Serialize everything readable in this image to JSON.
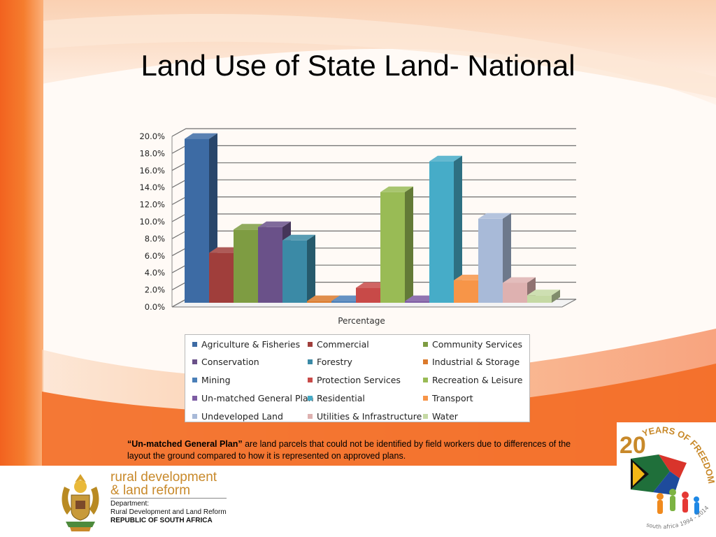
{
  "slide": {
    "title": "Land Use of State Land- National"
  },
  "chart_data": {
    "type": "bar",
    "xlabel": "Percentage",
    "ylabel": "",
    "ylim": [
      0,
      20
    ],
    "ytick_labels": [
      "0.0%",
      "2.0%",
      "4.0%",
      "6.0%",
      "8.0%",
      "10.0%",
      "12.0%",
      "14.0%",
      "16.0%",
      "18.0%",
      "20.0%"
    ],
    "grid": true,
    "legend_position": "bottom",
    "series": [
      {
        "name": "Agriculture & Fisheries",
        "value": 19.7,
        "color": "#3d6ba4"
      },
      {
        "name": "Commercial",
        "value": 6.0,
        "color": "#a03e3b"
      },
      {
        "name": "Community Services",
        "value": 8.8,
        "color": "#7e9c42"
      },
      {
        "name": "Conservation",
        "value": 9.1,
        "color": "#6a5189"
      },
      {
        "name": "Forestry",
        "value": 7.5,
        "color": "#3b8aa6"
      },
      {
        "name": "Industrial & Storage",
        "value": 0.2,
        "color": "#db7a2c"
      },
      {
        "name": "Mining",
        "value": 0.2,
        "color": "#4a7fb8"
      },
      {
        "name": "Protection Services",
        "value": 1.8,
        "color": "#c84a48"
      },
      {
        "name": "Recreation & Leisure",
        "value": 13.3,
        "color": "#99bb55"
      },
      {
        "name": "Un-matched General Plan",
        "value": 0.2,
        "color": "#7d5ca3"
      },
      {
        "name": "Residential",
        "value": 17.0,
        "color": "#46acc8"
      },
      {
        "name": "Transport",
        "value": 2.7,
        "color": "#f79548"
      },
      {
        "name": "Undeveloped Land",
        "value": 10.1,
        "color": "#a8bad8"
      },
      {
        "name": "Utilities & Infrastructure",
        "value": 2.4,
        "color": "#deb1b0"
      },
      {
        "name": "Water",
        "value": 0.9,
        "color": "#c5d9a4"
      }
    ]
  },
  "note": {
    "term": "“Un-matched General Plan”",
    "text": " are land parcels that could not be identified by field workers due to differences of the layout the ground compared to how it is represented on approved plans."
  },
  "footer": {
    "line1": "rural development",
    "line2": "& land reform",
    "dept_label": "Department:",
    "dept_name": "Rural Development and Land Reform",
    "country": "REPUBLIC OF SOUTH AFRICA"
  },
  "badge": {
    "number": "20",
    "text": "YEARS OF FREEDOM",
    "subtext": "south africa 1994 - 2014"
  },
  "colors": {
    "orange_dark": "#f25d1d",
    "orange_mid": "#f58a3a",
    "orange_light": "#fbd2b4",
    "gold": "#c8892a"
  }
}
